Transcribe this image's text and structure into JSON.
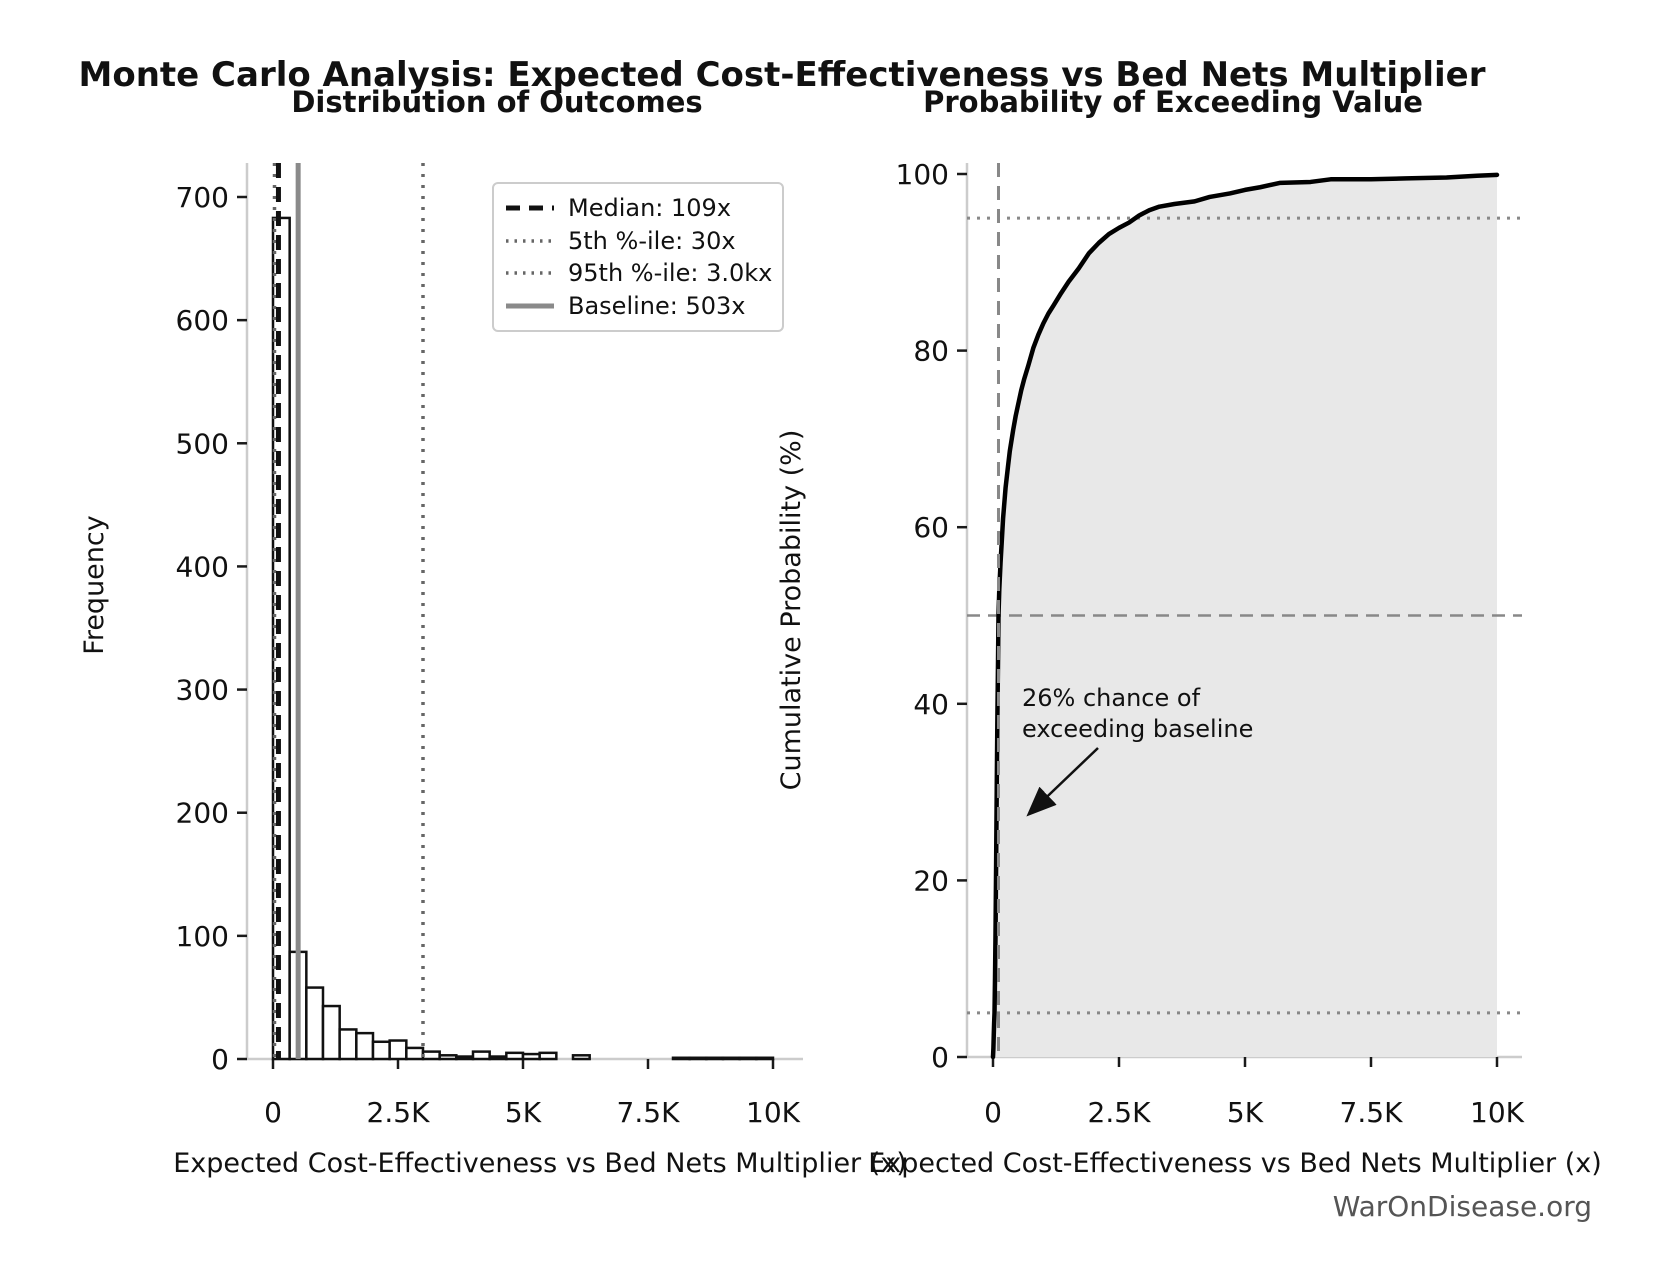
{
  "title": "Monte Carlo Analysis: Expected Cost-Effectiveness vs Bed Nets Multiplier",
  "watermark": "WarOnDisease.org",
  "chart_data": [
    {
      "type": "bar",
      "title": "Distribution of Outcomes",
      "xlabel": "Expected Cost-Effectiveness vs Bed Nets Multiplier (x)",
      "ylabel": "Frequency",
      "xlim": [
        0,
        10000
      ],
      "ylim": [
        0,
        727
      ],
      "x_ticks": {
        "values": [
          0,
          2500,
          5000,
          7500,
          10000
        ],
        "labels": [
          "0",
          "2.5K",
          "5K",
          "7.5K",
          "10K"
        ]
      },
      "y_ticks": {
        "values": [
          0,
          100,
          200,
          300,
          400,
          500,
          600,
          700
        ],
        "labels": [
          "0",
          "100",
          "200",
          "300",
          "400",
          "500",
          "600",
          "700"
        ]
      },
      "grid": false,
      "bin_start": 0,
      "bin_width": 333.33,
      "counts": [
        683,
        87,
        58,
        43,
        24,
        21,
        14,
        15,
        9,
        6,
        3,
        2,
        6,
        2,
        5,
        4,
        5,
        0,
        3,
        0,
        0,
        0,
        0,
        0,
        1,
        1,
        1,
        1,
        1,
        1
      ],
      "bar_fill": "#ffffff",
      "bar_edge": "#111111",
      "reference_lines": [
        {
          "label": "Median: 109x",
          "value": 109,
          "style": "dashed",
          "color": "#111111"
        },
        {
          "label": "5th %-ile: 30x",
          "value": 30,
          "style": "dotted",
          "color": "#666666"
        },
        {
          "label": "95th %-ile: 3.0kx",
          "value": 3000,
          "style": "dotted",
          "color": "#666666"
        },
        {
          "label": "Baseline: 503x",
          "value": 503,
          "style": "solid",
          "color": "#8a8a8a"
        }
      ],
      "legend_position": "upper right"
    },
    {
      "type": "line",
      "title": "Probability of Exceeding Value",
      "xlabel": "Expected Cost-Effectiveness vs Bed Nets Multiplier (x)",
      "ylabel": "Cumulative Probability (%)",
      "xlim": [
        0,
        10000
      ],
      "ylim": [
        0,
        100
      ],
      "x_ticks": {
        "values": [
          0,
          2500,
          5000,
          7500,
          10000
        ],
        "labels": [
          "0",
          "2.5K",
          "5K",
          "7.5K",
          "10K"
        ]
      },
      "y_ticks": {
        "values": [
          0,
          20,
          40,
          60,
          80,
          100
        ],
        "labels": [
          "0",
          "20",
          "40",
          "60",
          "80",
          "100"
        ]
      },
      "grid": false,
      "line_color": "#000000",
      "fill_color": "#e8e8e8",
      "points": [
        [
          0,
          0
        ],
        [
          8,
          1
        ],
        [
          15,
          2.5
        ],
        [
          22,
          3.8
        ],
        [
          30,
          5
        ],
        [
          40,
          9
        ],
        [
          50,
          14
        ],
        [
          62,
          22
        ],
        [
          75,
          31
        ],
        [
          88,
          39
        ],
        [
          100,
          45
        ],
        [
          109,
          50
        ],
        [
          125,
          53
        ],
        [
          150,
          56
        ],
        [
          175,
          58.5
        ],
        [
          200,
          61
        ],
        [
          250,
          64.5
        ],
        [
          300,
          67
        ],
        [
          333,
          68.6
        ],
        [
          400,
          71
        ],
        [
          450,
          72.6
        ],
        [
          503,
          74
        ],
        [
          560,
          75.5
        ],
        [
          620,
          76.8
        ],
        [
          700,
          78.3
        ],
        [
          800,
          80.3
        ],
        [
          900,
          81.8
        ],
        [
          1000,
          83.1
        ],
        [
          1100,
          84.2
        ],
        [
          1200,
          85.1
        ],
        [
          1350,
          86.5
        ],
        [
          1500,
          87.8
        ],
        [
          1700,
          89.3
        ],
        [
          1900,
          91
        ],
        [
          2100,
          92.2
        ],
        [
          2300,
          93.2
        ],
        [
          2500,
          93.9
        ],
        [
          2700,
          94.5
        ],
        [
          2900,
          95.3
        ],
        [
          3100,
          95.9
        ],
        [
          3300,
          96.3
        ],
        [
          3600,
          96.6
        ],
        [
          4000,
          96.9
        ],
        [
          4300,
          97.4
        ],
        [
          4700,
          97.8
        ],
        [
          5000,
          98.2
        ],
        [
          5300,
          98.5
        ],
        [
          5700,
          99.0
        ],
        [
          6300,
          99.1
        ],
        [
          6700,
          99.4
        ],
        [
          7500,
          99.4
        ],
        [
          8200,
          99.5
        ],
        [
          9000,
          99.6
        ],
        [
          9600,
          99.8
        ],
        [
          10000,
          99.9
        ]
      ],
      "h_lines": [
        {
          "y": 50,
          "style": "dashed",
          "color": "#888888"
        },
        {
          "y": 95,
          "style": "dotted",
          "color": "#888888"
        },
        {
          "y": 5,
          "style": "dotted",
          "color": "#888888"
        }
      ],
      "v_lines": [
        {
          "x": 109,
          "style": "dashed",
          "color": "#888888"
        }
      ],
      "annotation": {
        "lines": [
          "26% chance of",
          "exceeding baseline"
        ],
        "text_xy": [
          575,
          44
        ],
        "arrow_from": [
          2080,
          35
        ],
        "arrow_to": [
          680,
          27
        ]
      }
    }
  ]
}
